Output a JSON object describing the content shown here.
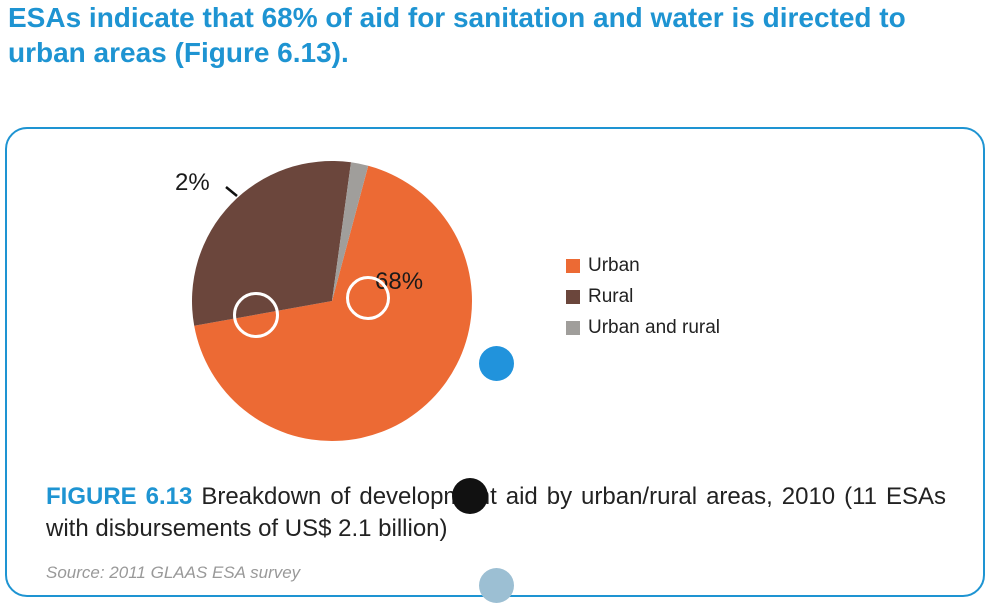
{
  "heading": "ESAs indicate that 68% of aid for sanitation and water is directed to urban areas (Figure 6.13).",
  "chart_data": {
    "type": "pie",
    "series": [
      {
        "name": "Urban",
        "value": 68,
        "color": "#ec6a34",
        "label": "68%"
      },
      {
        "name": "Rural",
        "value": 30,
        "color": "#6b463c",
        "label": ""
      },
      {
        "name": "Urban and rural",
        "value": 2,
        "color": "#a09e9b",
        "label": "2%"
      }
    ],
    "legend_position": "right"
  },
  "caption": {
    "figure_number": "FIGURE 6.13",
    "text": " Breakdown of development aid by urban/rural areas, 2010 (11 ESAs with disbursements of US$ 2.1 billion)"
  },
  "source": "Source: 2011 GLAAS ESA survey",
  "colors": {
    "accent": "#1e94d2",
    "overlay_blue": "#2193dc",
    "overlay_black": "#111111",
    "overlay_light_blue": "#9cbfd3"
  }
}
